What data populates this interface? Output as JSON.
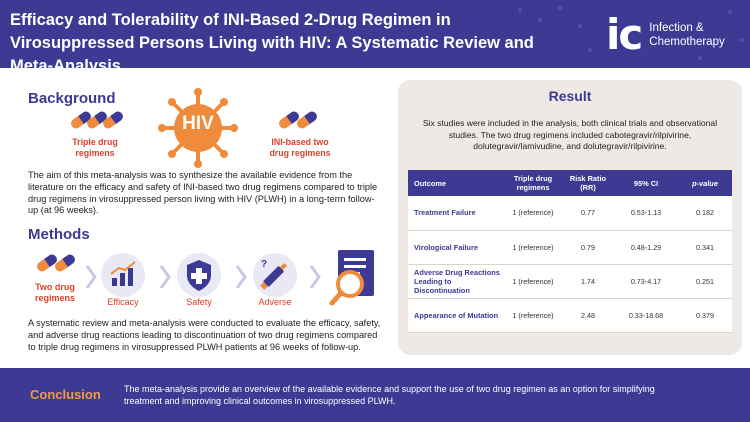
{
  "header": {
    "title": "Efficacy and Tolerability of INI-Based 2-Drug Regimen in Virosuppressed Persons Living with HIV: A Systematic Review and Meta-Analysis",
    "logo_mark": "ic",
    "journal_name_line1": "Infection &",
    "journal_name_line2": "Chemotherapy"
  },
  "background": {
    "heading": "Background",
    "virus_label": "HIV",
    "triple_label": "Triple drug\nregimens",
    "two_label": "INI-based two\ndrug regimens",
    "text": "The aim of this meta-analysis was to synthesize the available evidence from the literature on the efficacy and safety of INI-based two drug regimens compared to triple drug regimens in virosuppressed person living with HIV (PLWH) in a long-term follow-up (at 96 weeks)."
  },
  "methods": {
    "heading": "Methods",
    "two_drug_label": "Two drug\nregimens",
    "items": [
      {
        "label": "Efficacy",
        "icon": "chart-icon"
      },
      {
        "label": "Safety",
        "icon": "shield-icon"
      },
      {
        "label": "Adverse",
        "icon": "syringe-icon"
      }
    ],
    "text": "A systematic review and meta-analysis were conducted to evaluate the efficacy, safety, and adverse drug reactions leading to discontinuation of two drug regimens compared to triple drug regimens in virosuppressed PLWH patients at 96 weeks of follow-up."
  },
  "result": {
    "heading": "Result",
    "text": "Six studies were included in the analysis, both clinical trials and observational studies. The two drug regimens included cabotegravir/rilpivirine, dolutegravir/lamivudine, and dolutegravir/rilpivirine.",
    "columns": [
      "Outcome",
      "Triple drug regimens",
      "Risk Ratio (RR)",
      "95% CI",
      "p-value"
    ],
    "rows": [
      {
        "outcome": "Treatment Failure",
        "triple": "1 (reference)",
        "rr": "0.77",
        "ci": "0.53-1.13",
        "p": "0.182"
      },
      {
        "outcome": "Virological Failure",
        "triple": "1 (reference)",
        "rr": "0.79",
        "ci": "0.48-1.29",
        "p": "0.341"
      },
      {
        "outcome": "Adverse Drug Reactions Leading to Discontinuation",
        "triple": "1 (reference)",
        "rr": "1.74",
        "ci": "0.73-4.17",
        "p": "0.251"
      },
      {
        "outcome": "Appearance of Mutation",
        "triple": "1 (reference)",
        "rr": "2.48",
        "ci": "0.33-18.68",
        "p": "0.379"
      }
    ]
  },
  "conclusion": {
    "heading": "Conclusion",
    "text": "The meta-analysis provide an overview of the available evidence and support the use of two drug regimen as an option for simplifying treatment and improving clinical outcomes in virosuppressed PLWH."
  },
  "colors": {
    "primary": "#3c3a92",
    "accent_orange": "#ef8b3a",
    "accent_red": "#d9412b",
    "result_bg": "#efe9e6"
  }
}
